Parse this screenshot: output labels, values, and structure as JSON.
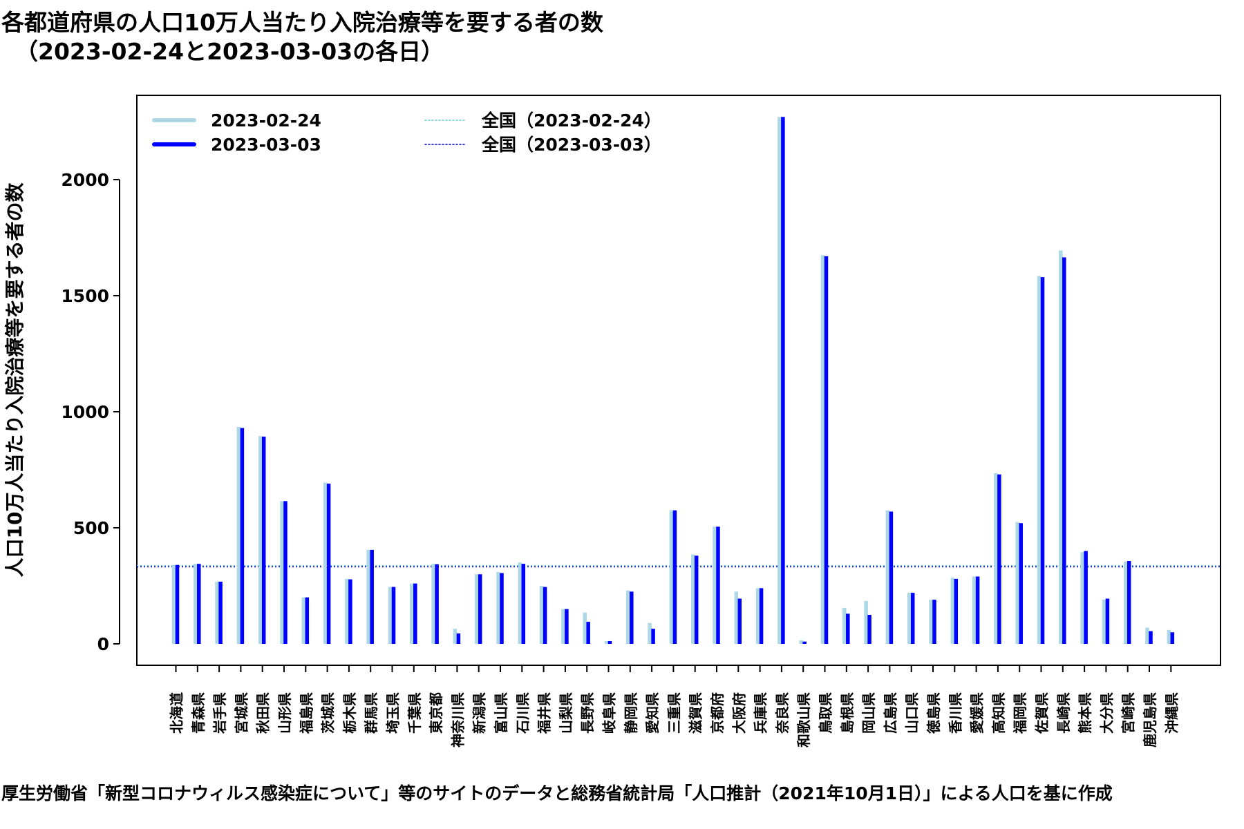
{
  "title": {
    "line1": "各都道府県の人口10万人当たり入院治療等を要する者の数",
    "line2": "（2023-02-24と2023-03-03の各日）"
  },
  "footer": "厚生労働省「新型コロナウィルス感染症について」等のサイトのデータと総務省統計局「人口推計（2021年10月1日）」による人口を基に作成",
  "colors": {
    "series1": "#add8e6",
    "series2": "#0000ff",
    "natl1": "#66cdcd",
    "natl2": "#0000cd"
  },
  "chart_data": {
    "type": "bar",
    "ylabel": "人口10万人当たり入院治療等を要する者の数",
    "xlabel": "",
    "ylim": [
      0,
      2300
    ],
    "yticks": [
      0,
      500,
      1000,
      1500,
      2000
    ],
    "grid": false,
    "legend_position": "top-left",
    "categories": [
      "北海道",
      "青森県",
      "岩手県",
      "宮城県",
      "秋田県",
      "山形県",
      "福島県",
      "茨城県",
      "栃木県",
      "群馬県",
      "埼玉県",
      "千葉県",
      "東京都",
      "神奈川県",
      "新潟県",
      "富山県",
      "石川県",
      "福井県",
      "山梨県",
      "長野県",
      "岐阜県",
      "静岡県",
      "愛知県",
      "三重県",
      "滋賀県",
      "京都府",
      "大阪府",
      "兵庫県",
      "奈良県",
      "和歌山県",
      "鳥取県",
      "島根県",
      "岡山県",
      "広島県",
      "山口県",
      "徳島県",
      "香川県",
      "愛媛県",
      "高知県",
      "福岡県",
      "佐賀県",
      "長崎県",
      "熊本県",
      "大分県",
      "宮崎県",
      "鹿児島県",
      "沖縄県"
    ],
    "series": [
      {
        "name": "2023-02-24",
        "values": [
          340,
          345,
          268,
          935,
          895,
          615,
          200,
          695,
          280,
          405,
          245,
          260,
          345,
          65,
          300,
          310,
          350,
          250,
          150,
          135,
          12,
          230,
          90,
          575,
          385,
          505,
          225,
          240,
          2270,
          15,
          1675,
          155,
          185,
          575,
          220,
          190,
          285,
          290,
          735,
          525,
          1585,
          1695,
          395,
          190,
          355,
          70,
          60
        ]
      },
      {
        "name": "2023-03-03",
        "values": [
          340,
          345,
          268,
          930,
          893,
          615,
          200,
          690,
          278,
          405,
          245,
          260,
          343,
          45,
          300,
          305,
          345,
          245,
          150,
          95,
          12,
          225,
          65,
          575,
          380,
          505,
          195,
          240,
          2270,
          10,
          1670,
          130,
          125,
          570,
          220,
          190,
          280,
          290,
          730,
          520,
          1580,
          1665,
          400,
          195,
          357,
          55,
          50
        ]
      }
    ],
    "reference_lines": [
      {
        "name": "全国（2023-02-24）",
        "value": 337
      },
      {
        "name": "全国（2023-03-03）",
        "value": 332
      }
    ]
  }
}
